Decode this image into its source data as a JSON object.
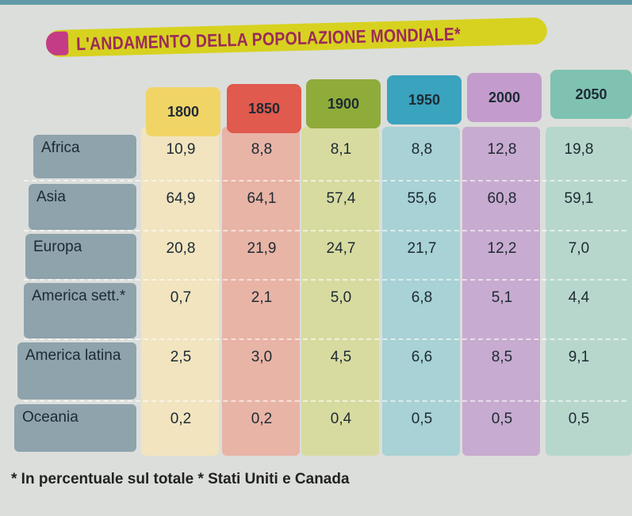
{
  "title": "L'ANDAMENTO DELLA POPOLAZIONE MONDIALE*",
  "years": [
    "1800",
    "1850",
    "1900",
    "1950",
    "2000",
    "2050"
  ],
  "colors": {
    "1800": "#f0d466",
    "1850": "#e05a4e",
    "1900": "#8fab3a",
    "1950": "#3aa3be",
    "2000": "#c39bcc",
    "2050": "#7fc2b1"
  },
  "rows": [
    {
      "label": "Africa",
      "values": [
        "10,9",
        "8,8",
        "8,1",
        "8,8",
        "12,8",
        "19,8"
      ]
    },
    {
      "label": "Asia",
      "values": [
        "64,9",
        "64,1",
        "57,4",
        "55,6",
        "60,8",
        "59,1"
      ]
    },
    {
      "label": "Europa",
      "values": [
        "20,8",
        "21,9",
        "24,7",
        "21,7",
        "12,2",
        "7,0"
      ]
    },
    {
      "label": "America sett.*",
      "values": [
        "0,7",
        "2,1",
        "5,0",
        "6,8",
        "5,1",
        "4,4"
      ]
    },
    {
      "label": "America latina",
      "values": [
        "2,5",
        "3,0",
        "4,5",
        "6,6",
        "8,5",
        "9,1"
      ]
    },
    {
      "label": "Oceania",
      "values": [
        "0,2",
        "0,2",
        "0,4",
        "0,5",
        "0,5",
        "0,5"
      ]
    }
  ],
  "footnote": "* In percentuale sul totale * Stati Uniti e Canada"
}
